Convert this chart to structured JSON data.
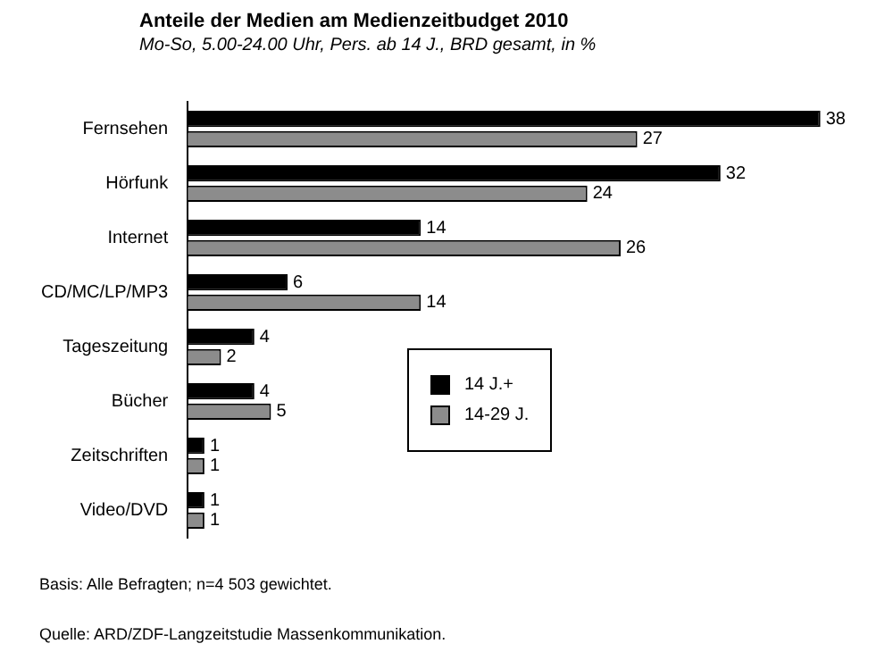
{
  "chart_data": {
    "type": "bar",
    "orientation": "horizontal",
    "title": "Anteile der Medien am Medienzeitbudget 2010",
    "subtitle": "Mo-So, 5.00-24.00 Uhr, Pers. ab 14 J., BRD gesamt, in %",
    "categories": [
      "Fernsehen",
      "Hörfunk",
      "Internet",
      "CD/MC/LP/MP3",
      "Tageszeitung",
      "Bücher",
      "Zeitschriften",
      "Video/DVD"
    ],
    "series": [
      {
        "name": "14 J.+",
        "color": "#000000",
        "values": [
          38,
          32,
          14,
          6,
          4,
          4,
          1,
          1
        ]
      },
      {
        "name": "14-29 J.",
        "color": "#8c8c8c",
        "values": [
          27,
          24,
          26,
          14,
          2,
          5,
          1,
          1
        ]
      }
    ],
    "data_labels": true,
    "legend": "center",
    "tick_labels": "y",
    "annotations": [
      "Basis: Alle Befragten; n=4 503 gewichtet.",
      "Quelle: ARD/ZDF-Langzeitstudie Massenkommunikation."
    ]
  }
}
